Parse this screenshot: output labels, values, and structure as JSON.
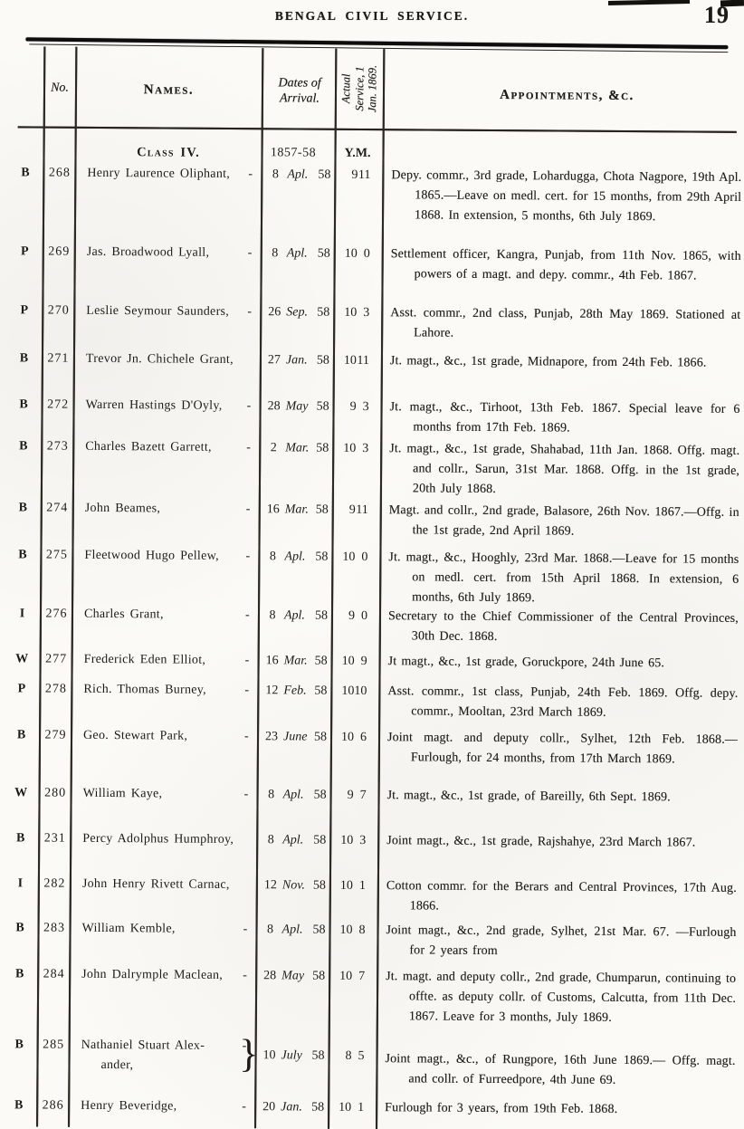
{
  "page": {
    "title": "BENGAL CIVIL SERVICE.",
    "page_number": "19"
  },
  "table": {
    "headers": {
      "no": "No.",
      "names": "Names.",
      "dates_of_arrival": "Dates of Arrival.",
      "actual_service": "Actual Service, 1 Jan. 1869.",
      "appointments": "Appointments, &c."
    },
    "class_header": {
      "label": "Class IV.",
      "dates": "1857-58",
      "service_y": "Y.",
      "service_m": "M."
    },
    "rows": [
      {
        "letter": "B",
        "no": "268",
        "name": "Henry Laurence Oliphant,",
        "dash": "-",
        "day": "8",
        "month": "Apl.",
        "year": "58",
        "service_y": "9",
        "service_m": "11",
        "appointment": "Depy. commr., 3rd grade, Lohardugga, Chota Nagpore, 19th Apl. 1865.—Leave on medl. cert. for 15 months, from 29th April 1868.  In extension, 5 months, 6th July 1869."
      },
      {
        "letter": "P",
        "no": "269",
        "name": "Jas. Broadwood Lyall,",
        "dash": "-",
        "day": "8",
        "month": "Apl.",
        "year": "58",
        "service_y": "10",
        "service_m": "0",
        "appointment": "Settlement officer, Kangra, Punjab, from 11th Nov. 1865, with powers of a magt. and depy. commr., 4th Feb. 1867."
      },
      {
        "letter": "P",
        "no": "270",
        "name": "Leslie Seymour Saunders,",
        "dash": "-",
        "day": "26",
        "month": "Sep.",
        "year": "58",
        "service_y": "10",
        "service_m": "3",
        "appointment": "Asst. commr., 2nd class, Punjab, 28th May 1869. Stationed  at  Lahore."
      },
      {
        "letter": "B",
        "no": "271",
        "name": "Trevor Jn. Chichele Grant,",
        "dash": "",
        "day": "27",
        "month": "Jan.",
        "year": "58",
        "service_y": "10",
        "service_m": "11",
        "appointment": "Jt. magt., &c., 1st grade, Midnapore, from 24th Feb. 1866."
      },
      {
        "letter": "B",
        "no": "272",
        "name": "Warren Hastings D'Oyly,",
        "dash": "-",
        "day": "28",
        "month": "May",
        "year": "58",
        "service_y": "9",
        "service_m": "3",
        "appointment": "Jt. magt., &c., Tirhoot, 13th Feb. 1867.  Special leave for 6 months from 17th Feb. 1869."
      },
      {
        "letter": "B",
        "no": "273",
        "name": "Charles Bazett Garrett,",
        "dash": "-",
        "day": "2",
        "month": "Mar.",
        "year": "58",
        "service_y": "10",
        "service_m": "3",
        "appointment": "Jt. magt., &c., 1st grade, Shahabad, 11th Jan. 1868. Offg. magt. and collr., Sarun, 31st Mar. 1868. Offg. in the 1st grade, 20th July 1868."
      },
      {
        "letter": "B",
        "no": "274",
        "name": "John Beames,",
        "dash": "-",
        "day": "16",
        "month": "Mar.",
        "year": "58",
        "service_y": "9",
        "service_m": "11",
        "appointment": "Magt. and collr., 2nd grade, Balasore, 26th Nov. 1867.—Offg. in the 1st grade, 2nd April 1869."
      },
      {
        "letter": "B",
        "no": "275",
        "name": "Fleetwood Hugo Pellew,",
        "dash": "-",
        "day": "8",
        "month": "Apl.",
        "year": "58",
        "service_y": "10",
        "service_m": "0",
        "appointment": "Jt. magt., &c., Hooghly, 23rd Mar. 1868.—Leave for 15 months on medl. cert. from 15th April 1868. In extension, 6 months, 6th July 1869."
      },
      {
        "letter": "I",
        "no": "276",
        "name": "Charles Grant,",
        "dash": "-",
        "day": "8",
        "month": "Apl.",
        "year": "58",
        "service_y": "9",
        "service_m": "0",
        "appointment": "Secretary to the Chief Commissioner of the Central Provinces, 30th Dec. 1868."
      },
      {
        "letter": "W",
        "no": "277",
        "name": "Frederick Eden Elliot,",
        "dash": "-",
        "day": "16",
        "month": "Mar.",
        "year": "58",
        "service_y": "10",
        "service_m": "9",
        "appointment": "Jt magt., &c., 1st grade, Goruckpore, 24th June 65."
      },
      {
        "letter": "P",
        "no": "278",
        "name": "Rich. Thomas Burney,",
        "dash": "-",
        "day": "12",
        "month": "Feb.",
        "year": "58",
        "service_y": "10",
        "service_m": "10",
        "appointment": "Asst. commr., 1st class, Punjab, 24th Feb. 1869. Offg. depy. commr., Mooltan, 23rd March 1869."
      },
      {
        "letter": "B",
        "no": "279",
        "name": "Geo. Stewart Park,",
        "dash": "-",
        "day": "23",
        "month": "June",
        "year": "58",
        "service_y": "10",
        "service_m": "6",
        "appointment": "Joint magt. and deputy collr., Sylhet, 12th Feb. 1868.—Furlough, for 24 months, from 17th March 1869."
      },
      {
        "letter": "W",
        "no": "280",
        "name": "William Kaye,",
        "dash": "-",
        "day": "8",
        "month": "Apl.",
        "year": "58",
        "service_y": "9",
        "service_m": "7",
        "appointment": "Jt. magt., &c., 1st grade, of Bareilly, 6th Sept. 1869."
      },
      {
        "letter": "B",
        "no": "231",
        "name": "Percy Adolphus Humphroy,",
        "dash": "",
        "day": "8",
        "month": "Apl.",
        "year": "58",
        "service_y": "10",
        "service_m": "3",
        "appointment": "Joint magt., &c., 1st grade, Rajshahye, 23rd March 1867."
      },
      {
        "letter": "I",
        "no": "282",
        "name": "John Henry Rivett Carnac,",
        "dash": "",
        "day": "12",
        "month": "Nov.",
        "year": "58",
        "service_y": "10",
        "service_m": "1",
        "appointment": "Cotton commr. for the Berars and Central Provinces, 17th Aug. 1866."
      },
      {
        "letter": "B",
        "no": "283",
        "name": "William Kemble,",
        "dash": "-",
        "day": "8",
        "month": "Apl.",
        "year": "58",
        "service_y": "10",
        "service_m": "8",
        "appointment": "Joint magt., &c., 2nd grade, Sylhet, 21st Mar. 67. —Furlough for 2 years from"
      },
      {
        "letter": "B",
        "no": "284",
        "name": "John Dalrymple Maclean,",
        "dash": "-",
        "day": "28",
        "month": "May",
        "year": "58",
        "service_y": "10",
        "service_m": "7",
        "appointment": "Jt. magt. and deputy collr., 2nd grade, Chumparun, continuing to offte. as deputy collr. of Customs, Calcutta, from 11th Dec. 1867.  Leave for 3 months, July 1869."
      },
      {
        "letter": "B",
        "no": "285",
        "name": "Nathaniel Stuart Alex-",
        "name2": "ander,",
        "dash": "-",
        "brace": true,
        "day": "10",
        "month": "July",
        "year": "58",
        "service_y": "8",
        "service_m": "5",
        "appointment": "Joint magt., &c., of Rungpore, 16th June 1869.— Offg. magt. and collr. of Furreedpore, 4th June 69."
      },
      {
        "letter": "B",
        "no": "286",
        "name": "Henry Beveridge,",
        "dash": "-",
        "day": "20",
        "month": "Jan.",
        "year": "58",
        "service_y": "10",
        "service_m": "1",
        "appointment": "Furlough for 3 years, from 19th Feb. 1868."
      }
    ]
  }
}
